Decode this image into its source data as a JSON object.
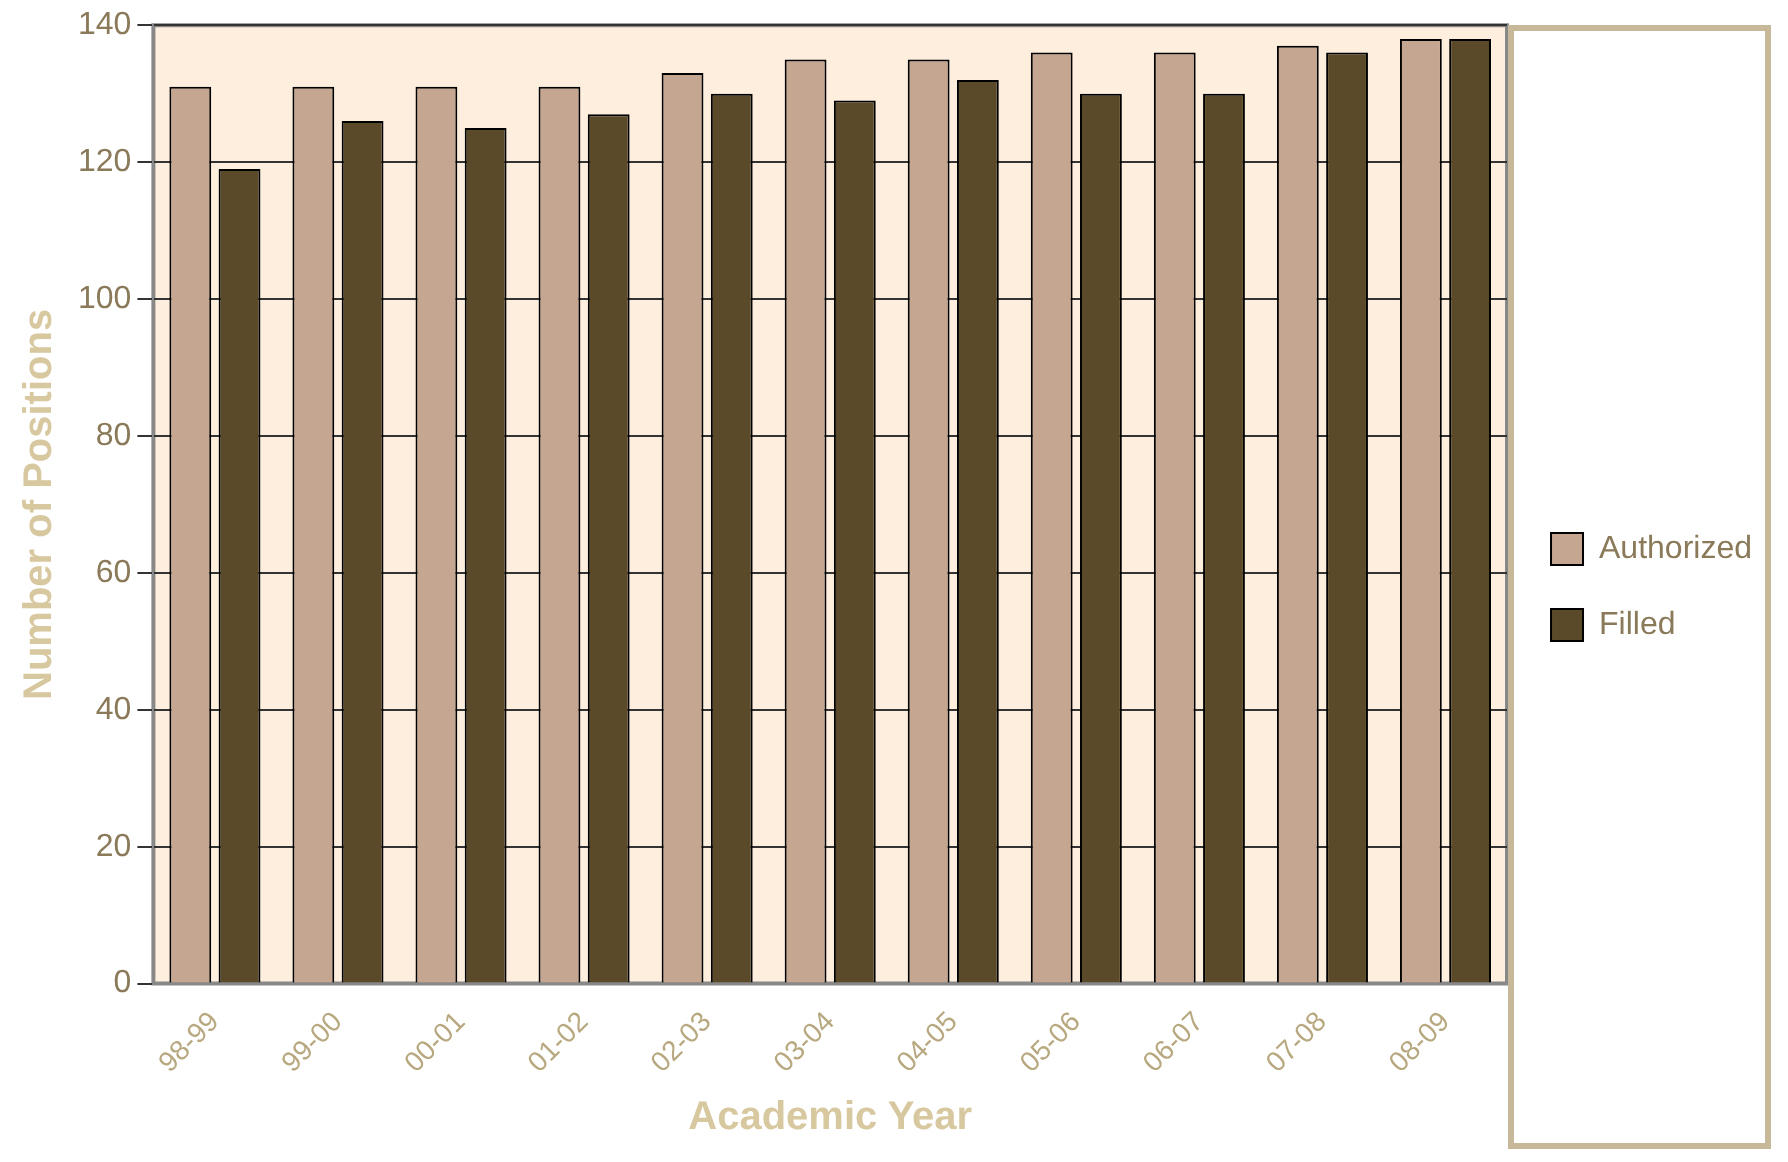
{
  "chart_data": {
    "type": "bar",
    "xlabel": "Academic Year",
    "ylabel": "Number of Positions",
    "categories": [
      "98-99",
      "99-00",
      "00-01",
      "01-02",
      "02-03",
      "03-04",
      "04-05",
      "05-06",
      "06-07",
      "07-08",
      "08-09"
    ],
    "series": [
      {
        "name": "Authorized",
        "color": "#c4a691",
        "values": [
          131,
          131,
          131,
          131,
          133,
          135,
          135,
          136,
          136,
          137,
          138
        ]
      },
      {
        "name": "Filled",
        "color": "#5a4a2a",
        "values": [
          119,
          126,
          125,
          127,
          130,
          129,
          132,
          130,
          130,
          136,
          138
        ]
      }
    ],
    "ylim": [
      0,
      140
    ],
    "yticks": [
      0,
      20,
      40,
      60,
      80,
      100,
      120,
      140
    ],
    "grid": "y",
    "legend": "right"
  }
}
